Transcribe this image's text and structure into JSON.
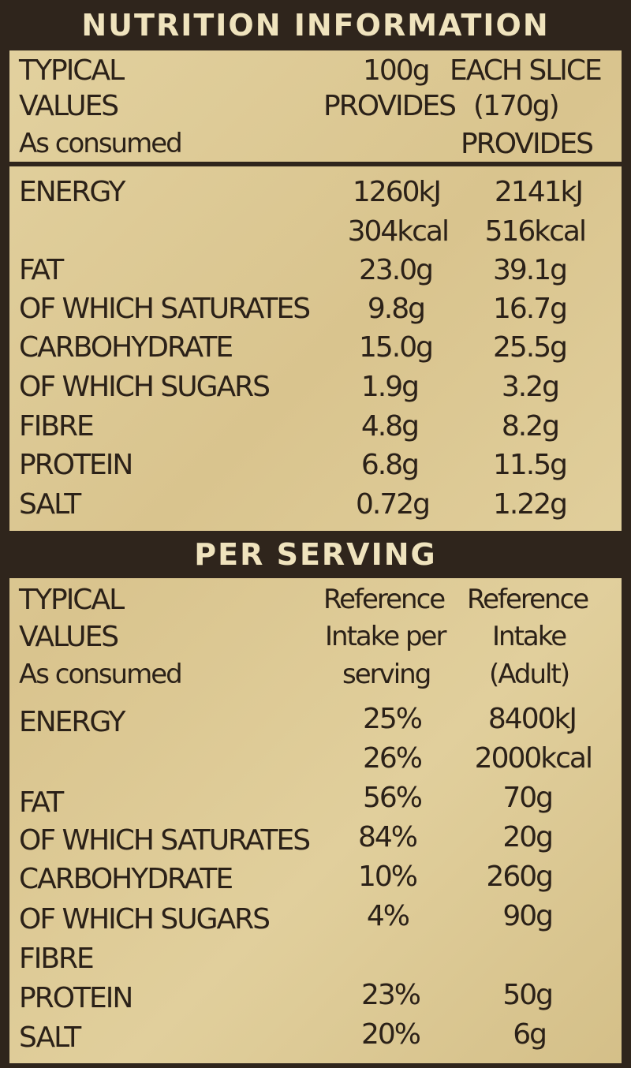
{
  "title": "NUTRITION INFORMATION",
  "header": {
    "typical": "TYPICAL",
    "values": "VALUES",
    "as_consumed": "As consumed",
    "col_100g": "100g",
    "col_100g_2": "PROVIDES",
    "col_slice": "EACH SLICE",
    "col_slice_2": "(170g)",
    "col_slice_3": "PROVIDES"
  },
  "rows": [
    {
      "label": "ENERGY",
      "per100": "1260kJ",
      "slice": "2141kJ"
    },
    {
      "label": "",
      "per100": "304kcal",
      "slice": "516kcal"
    },
    {
      "label": "FAT",
      "per100": "23.0g",
      "slice": "39.1g"
    },
    {
      "label": "OF WHICH SATURATES",
      "per100": "9.8g",
      "slice": "16.7g"
    },
    {
      "label": "CARBOHYDRATE",
      "per100": "15.0g",
      "slice": "25.5g"
    },
    {
      "label": "OF WHICH SUGARS",
      "per100": "1.9g",
      "slice": "3.2g"
    },
    {
      "label": "FIBRE",
      "per100": "4.8g",
      "slice": "8.2g"
    },
    {
      "label": "PROTEIN",
      "per100": "6.8g",
      "slice": "11.5g"
    },
    {
      "label": "SALT",
      "per100": "0.72g",
      "slice": "1.22g"
    }
  ],
  "per_serving": {
    "title": "PER SERVING",
    "header": {
      "typical": "TYPICAL",
      "values": "VALUES",
      "as_consumed": "As consumed",
      "col_ri_1": "Reference",
      "col_ri_2": "Intake per",
      "col_ri_3": "serving",
      "col_adult_1": "Reference",
      "col_adult_2": "Intake",
      "col_adult_3": "(Adult)"
    },
    "rows": [
      {
        "label": "ENERGY",
        "pct": "25%",
        "ref": "8400kJ"
      },
      {
        "label": "",
        "pct": "26%",
        "ref": "2000kcal"
      },
      {
        "label": "FAT",
        "pct": "56%",
        "ref": "70g"
      },
      {
        "label": "OF WHICH SATURATES",
        "pct": "84%",
        "ref": "20g"
      },
      {
        "label": "CARBOHYDRATE",
        "pct": "10%",
        "ref": "260g"
      },
      {
        "label": "OF WHICH SUGARS",
        "pct": "4%",
        "ref": "90g"
      },
      {
        "label": "FIBRE",
        "pct": "",
        "ref": ""
      },
      {
        "label": "PROTEIN",
        "pct": "23%",
        "ref": "50g"
      },
      {
        "label": "SALT",
        "pct": "20%",
        "ref": "6g"
      }
    ]
  }
}
